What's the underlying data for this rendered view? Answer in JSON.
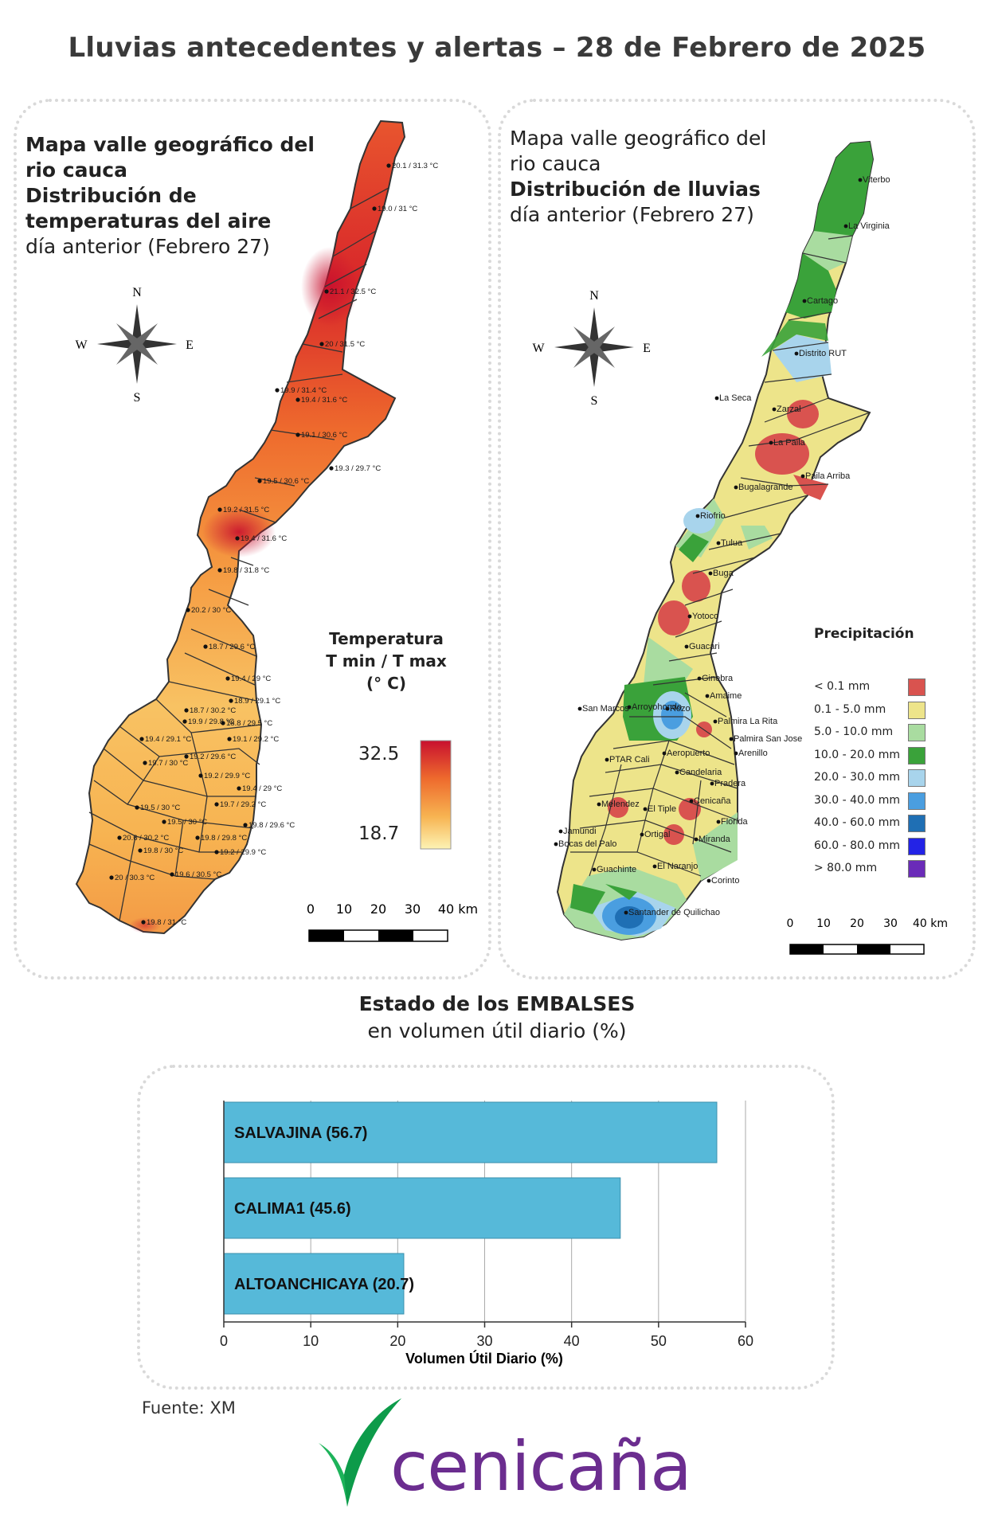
{
  "title": "Lluvias antecedentes y alertas – 28 de Febrero de 2025",
  "temp_map": {
    "title_lines": [
      "Mapa valle geográfico del",
      "rio cauca",
      "Distribución de",
      "temperaturas del aire"
    ],
    "subtitle": "día anterior (Febrero 27)",
    "compass": {
      "n": "N",
      "s": "S",
      "e": "E",
      "w": "W"
    },
    "legend": {
      "title_lines": [
        "Temperatura",
        "T min / T max",
        "(° C)"
      ],
      "max": "32.5",
      "min": "18.7",
      "colors": [
        "#c8102e",
        "#ee6a2d",
        "#f7b351",
        "#fdf3b4"
      ]
    },
    "scale": {
      "ticks": [
        "0",
        "10",
        "20",
        "30",
        "40 km"
      ]
    },
    "stations": [
      {
        "label": "20.1 / 31.3 °C",
        "x": 0.8,
        "y": 0.0
      },
      {
        "label": "19.0 / 31 °C",
        "x": 1.0,
        "y": 1.0
      },
      {
        "label": "21.1 / 32.5 °C",
        "x": 2.0,
        "y": 2.0
      },
      {
        "label": "20 / 31.5 °C",
        "x": 3.0,
        "y": 3.0
      },
      {
        "label": "19.9 / 31.4 °C",
        "x": 4.0,
        "y": 4.0
      },
      {
        "label": "19.4 / 31.6 °C",
        "x": 5.0,
        "y": 5.0
      },
      {
        "label": "19.1 / 30.6 °C",
        "x": 6.0,
        "y": 6.0
      },
      {
        "label": "19.3 / 29.7 °C",
        "x": 7.0,
        "y": 7.0
      },
      {
        "label": "19.5 / 30.6 °C",
        "x": 8.0,
        "y": 8.0
      },
      {
        "label": "19.2 / 31.5 °C",
        "x": 9.0,
        "y": 9.0
      },
      {
        "label": "19.4 / 31.6 °C",
        "x": 10.0,
        "y": 10.0
      },
      {
        "label": "19.8 / 31.8 °C",
        "x": 11.0,
        "y": 11.0
      },
      {
        "label": "20.2 / 30 °C",
        "x": 12.0,
        "y": 12.0
      },
      {
        "label": "18.7 / 29.6 °C",
        "x": 13.0,
        "y": 13.0
      },
      {
        "label": "19.4 / 29 °C",
        "x": 14.0,
        "y": 14.0
      },
      {
        "label": "18.9 / 29.1 °C",
        "x": 15.0,
        "y": 15.0
      },
      {
        "label": "18.7 / 30.2 °C",
        "x": 16.0,
        "y": 16.0
      },
      {
        "label": "19.9 / 29.8 °C",
        "x": 17.0,
        "y": 17.0
      },
      {
        "label": "18.8 / 29.5 °C",
        "x": 18.0,
        "y": 18.0
      },
      {
        "label": "19.4 / 29.1 °C",
        "x": 19.0,
        "y": 19.0
      },
      {
        "label": "19.1 / 29.2 °C",
        "x": 20.0,
        "y": 20.0
      },
      {
        "label": "19.7 / 30 °C",
        "x": 21.0,
        "y": 21.0
      },
      {
        "label": "19.2 / 29.6 °C",
        "x": 22.0,
        "y": 22.0
      },
      {
        "label": "19.2 / 29.9 °C",
        "x": 23.0,
        "y": 23.0
      },
      {
        "label": "19.4 / 29 °C",
        "x": 24.0,
        "y": 24.0
      },
      {
        "label": "19.5 / 30 °C",
        "x": 25.0,
        "y": 25.0
      },
      {
        "label": "19.7 / 29.2 °C",
        "x": 26.0,
        "y": 26.0
      },
      {
        "label": "19.5 / 30 °C",
        "x": 27.0,
        "y": 27.0
      },
      {
        "label": "19.8 / 29.6 °C",
        "x": 28.0,
        "y": 28.0
      },
      {
        "label": "20.6 / 30.2 °C",
        "x": 29.0,
        "y": 29.0
      },
      {
        "label": "19.8 / 30 °C",
        "x": 30.0,
        "y": 30.0
      },
      {
        "label": "19.8 / 29.8 °C",
        "x": 31.0,
        "y": 31.0
      },
      {
        "label": "19.2 / 29.9 °C",
        "x": 32.0,
        "y": 32.0
      },
      {
        "label": "20 / 30.3 °C",
        "x": 33.0,
        "y": 33.0
      },
      {
        "label": "19.6 / 30.5 °C",
        "x": 34.0,
        "y": 34.0
      },
      {
        "label": "19.8 / 31 °C",
        "x": 35.0,
        "y": 35.0
      }
    ]
  },
  "rain_map": {
    "title_lines": [
      "Mapa valle geográfico del",
      "rio cauca"
    ],
    "title_bold": "Distribución de lluvias",
    "subtitle": "día anterior (Febrero 27)",
    "compass": {
      "n": "N",
      "s": "S",
      "e": "E",
      "w": "W"
    },
    "legend": {
      "title": "Precipitación",
      "items": [
        {
          "label": "< 0.1 mm",
          "color": "#d9534f"
        },
        {
          "label": "0.1 - 5.0 mm",
          "color": "#ede48a"
        },
        {
          "label": "5.0 - 10.0 mm",
          "color": "#a9dca0"
        },
        {
          "label": "10.0 - 20.0 mm",
          "color": "#3aa23a"
        },
        {
          "label": "20.0 - 30.0 mm",
          "color": "#a8d4ec"
        },
        {
          "label": "30.0 - 40.0 mm",
          "color": "#4a9ee0"
        },
        {
          "label": "40.0 - 60.0 mm",
          "color": "#1f6fb4"
        },
        {
          "label": "60.0 - 80.0 mm",
          "color": "#2323e6"
        },
        {
          "label": "> 80.0 mm",
          "color": "#6a2bb8"
        }
      ]
    },
    "scale": {
      "ticks": [
        "0",
        "10",
        "20",
        "30",
        "40 km"
      ]
    },
    "places": [
      "Viterbo",
      "La Virginia",
      "Cartago",
      "Distrito RUT",
      "La Seca",
      "Zarzal",
      "La Paila",
      "Paila Arriba",
      "Bugalagrande",
      "Riofrio",
      "Tulua",
      "Buga",
      "Yotoco",
      "Guacari",
      "Ginebra",
      "San Marcos",
      "Rozo",
      "Amaime",
      "Palmira La Rita",
      "Arroyohondo",
      "Palmira San Jose",
      "PTAR Cali",
      "Aeropuerto",
      "Arenillo",
      "Candelaria",
      "Pradera",
      "Melendez",
      "El Tiple",
      "Cenicaña",
      "Florida",
      "Jamundi",
      "Bocas del Palo",
      "Ortigal",
      "Miranda",
      "Guachinte",
      "El Naranjo",
      "Corinto",
      "Santander de Quilichao"
    ]
  },
  "reservoirs": {
    "title": "Estado de los EMBALSES",
    "subtitle": "en volumen útil diario (%)",
    "source": "Fuente: XM",
    "logo": "cenicaña",
    "chart_data": {
      "type": "bar",
      "orientation": "horizontal",
      "categories": [
        "SALVAJINA",
        "CALIMA1",
        "ALTOANCHICAYA"
      ],
      "bar_labels": [
        "SALVAJINA (56.7)",
        "CALIMA1 (45.6)",
        "ALTOANCHICAYA (20.7)"
      ],
      "values": [
        56.7,
        45.6,
        20.7
      ],
      "xlabel": "Volumen Útil Diario (%)",
      "xlim": [
        0,
        60
      ],
      "xticks": [
        "0",
        "10",
        "20",
        "30",
        "40",
        "50",
        "60"
      ],
      "grid": true,
      "bar_color": "#56b9d9"
    }
  }
}
